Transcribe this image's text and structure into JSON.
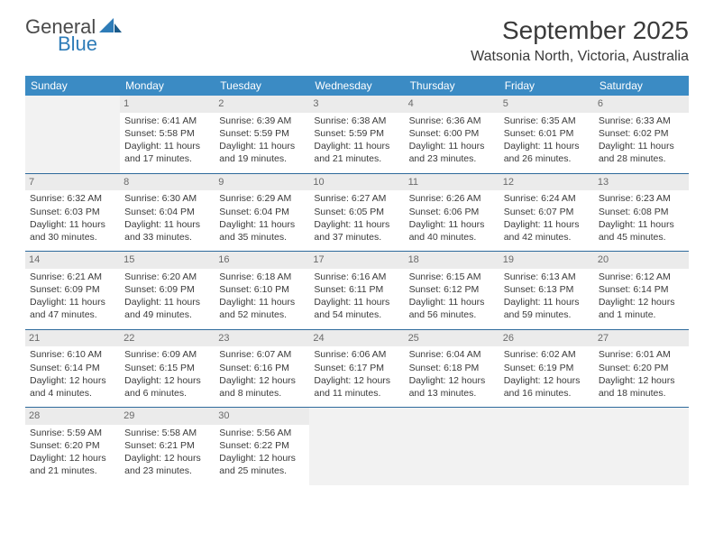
{
  "logo": {
    "word1": "General",
    "word2": "Blue"
  },
  "title": "September 2025",
  "location": "Watsonia North, Victoria, Australia",
  "colors": {
    "header_bg": "#3b8bc4",
    "header_text": "#ffffff",
    "week_rule": "#2e6a9c",
    "daynum_bg": "#ebebeb",
    "daynum_text": "#6a6a6a",
    "empty_bg": "#f2f2f2",
    "body_text": "#3a3a3a",
    "logo_gray": "#4a4a4a",
    "logo_blue": "#2e7cb8"
  },
  "day_names": [
    "Sunday",
    "Monday",
    "Tuesday",
    "Wednesday",
    "Thursday",
    "Friday",
    "Saturday"
  ],
  "weeks": [
    [
      null,
      {
        "n": "1",
        "sr": "Sunrise: 6:41 AM",
        "ss": "Sunset: 5:58 PM",
        "dl": "Daylight: 11 hours and 17 minutes."
      },
      {
        "n": "2",
        "sr": "Sunrise: 6:39 AM",
        "ss": "Sunset: 5:59 PM",
        "dl": "Daylight: 11 hours and 19 minutes."
      },
      {
        "n": "3",
        "sr": "Sunrise: 6:38 AM",
        "ss": "Sunset: 5:59 PM",
        "dl": "Daylight: 11 hours and 21 minutes."
      },
      {
        "n": "4",
        "sr": "Sunrise: 6:36 AM",
        "ss": "Sunset: 6:00 PM",
        "dl": "Daylight: 11 hours and 23 minutes."
      },
      {
        "n": "5",
        "sr": "Sunrise: 6:35 AM",
        "ss": "Sunset: 6:01 PM",
        "dl": "Daylight: 11 hours and 26 minutes."
      },
      {
        "n": "6",
        "sr": "Sunrise: 6:33 AM",
        "ss": "Sunset: 6:02 PM",
        "dl": "Daylight: 11 hours and 28 minutes."
      }
    ],
    [
      {
        "n": "7",
        "sr": "Sunrise: 6:32 AM",
        "ss": "Sunset: 6:03 PM",
        "dl": "Daylight: 11 hours and 30 minutes."
      },
      {
        "n": "8",
        "sr": "Sunrise: 6:30 AM",
        "ss": "Sunset: 6:04 PM",
        "dl": "Daylight: 11 hours and 33 minutes."
      },
      {
        "n": "9",
        "sr": "Sunrise: 6:29 AM",
        "ss": "Sunset: 6:04 PM",
        "dl": "Daylight: 11 hours and 35 minutes."
      },
      {
        "n": "10",
        "sr": "Sunrise: 6:27 AM",
        "ss": "Sunset: 6:05 PM",
        "dl": "Daylight: 11 hours and 37 minutes."
      },
      {
        "n": "11",
        "sr": "Sunrise: 6:26 AM",
        "ss": "Sunset: 6:06 PM",
        "dl": "Daylight: 11 hours and 40 minutes."
      },
      {
        "n": "12",
        "sr": "Sunrise: 6:24 AM",
        "ss": "Sunset: 6:07 PM",
        "dl": "Daylight: 11 hours and 42 minutes."
      },
      {
        "n": "13",
        "sr": "Sunrise: 6:23 AM",
        "ss": "Sunset: 6:08 PM",
        "dl": "Daylight: 11 hours and 45 minutes."
      }
    ],
    [
      {
        "n": "14",
        "sr": "Sunrise: 6:21 AM",
        "ss": "Sunset: 6:09 PM",
        "dl": "Daylight: 11 hours and 47 minutes."
      },
      {
        "n": "15",
        "sr": "Sunrise: 6:20 AM",
        "ss": "Sunset: 6:09 PM",
        "dl": "Daylight: 11 hours and 49 minutes."
      },
      {
        "n": "16",
        "sr": "Sunrise: 6:18 AM",
        "ss": "Sunset: 6:10 PM",
        "dl": "Daylight: 11 hours and 52 minutes."
      },
      {
        "n": "17",
        "sr": "Sunrise: 6:16 AM",
        "ss": "Sunset: 6:11 PM",
        "dl": "Daylight: 11 hours and 54 minutes."
      },
      {
        "n": "18",
        "sr": "Sunrise: 6:15 AM",
        "ss": "Sunset: 6:12 PM",
        "dl": "Daylight: 11 hours and 56 minutes."
      },
      {
        "n": "19",
        "sr": "Sunrise: 6:13 AM",
        "ss": "Sunset: 6:13 PM",
        "dl": "Daylight: 11 hours and 59 minutes."
      },
      {
        "n": "20",
        "sr": "Sunrise: 6:12 AM",
        "ss": "Sunset: 6:14 PM",
        "dl": "Daylight: 12 hours and 1 minute."
      }
    ],
    [
      {
        "n": "21",
        "sr": "Sunrise: 6:10 AM",
        "ss": "Sunset: 6:14 PM",
        "dl": "Daylight: 12 hours and 4 minutes."
      },
      {
        "n": "22",
        "sr": "Sunrise: 6:09 AM",
        "ss": "Sunset: 6:15 PM",
        "dl": "Daylight: 12 hours and 6 minutes."
      },
      {
        "n": "23",
        "sr": "Sunrise: 6:07 AM",
        "ss": "Sunset: 6:16 PM",
        "dl": "Daylight: 12 hours and 8 minutes."
      },
      {
        "n": "24",
        "sr": "Sunrise: 6:06 AM",
        "ss": "Sunset: 6:17 PM",
        "dl": "Daylight: 12 hours and 11 minutes."
      },
      {
        "n": "25",
        "sr": "Sunrise: 6:04 AM",
        "ss": "Sunset: 6:18 PM",
        "dl": "Daylight: 12 hours and 13 minutes."
      },
      {
        "n": "26",
        "sr": "Sunrise: 6:02 AM",
        "ss": "Sunset: 6:19 PM",
        "dl": "Daylight: 12 hours and 16 minutes."
      },
      {
        "n": "27",
        "sr": "Sunrise: 6:01 AM",
        "ss": "Sunset: 6:20 PM",
        "dl": "Daylight: 12 hours and 18 minutes."
      }
    ],
    [
      {
        "n": "28",
        "sr": "Sunrise: 5:59 AM",
        "ss": "Sunset: 6:20 PM",
        "dl": "Daylight: 12 hours and 21 minutes."
      },
      {
        "n": "29",
        "sr": "Sunrise: 5:58 AM",
        "ss": "Sunset: 6:21 PM",
        "dl": "Daylight: 12 hours and 23 minutes."
      },
      {
        "n": "30",
        "sr": "Sunrise: 5:56 AM",
        "ss": "Sunset: 6:22 PM",
        "dl": "Daylight: 12 hours and 25 minutes."
      },
      null,
      null,
      null,
      null
    ]
  ]
}
